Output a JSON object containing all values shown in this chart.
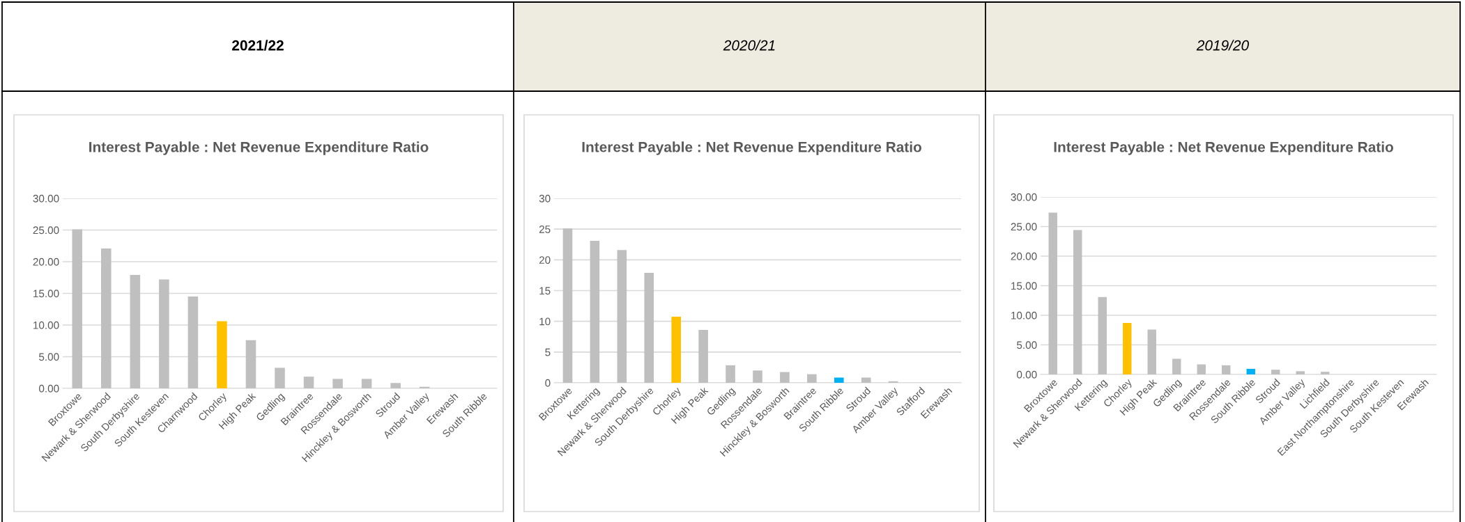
{
  "chart_data": [
    {
      "type": "bar",
      "title": "2021/22",
      "subtitle": "Interest Payable : Net Revenue Expenditure Ratio",
      "categories": [
        "Broxtowe",
        "Newark & Sherwood",
        "South Derbyshire",
        "South Kesteven",
        "Charnwood",
        "Chorley",
        "High Peak",
        "Gedling",
        "Braintree",
        "Rossendale",
        "Hinckley & Bosworth",
        "Stroud",
        "Amber Valley",
        "Erewash",
        "South Ribble"
      ],
      "values": [
        25.1,
        22.1,
        17.9,
        17.2,
        14.5,
        10.6,
        7.6,
        3.25,
        1.85,
        1.5,
        1.5,
        0.85,
        0.25,
        0,
        0
      ],
      "colors": [
        "#bfbfbf",
        "#bfbfbf",
        "#bfbfbf",
        "#bfbfbf",
        "#bfbfbf",
        "#ffc000",
        "#bfbfbf",
        "#bfbfbf",
        "#bfbfbf",
        "#bfbfbf",
        "#bfbfbf",
        "#bfbfbf",
        "#bfbfbf",
        "#bfbfbf",
        "#bfbfbf"
      ],
      "ylim": [
        0,
        30
      ],
      "yticks": [
        {
          "value": 0,
          "label": "0.00"
        },
        {
          "value": 5,
          "label": "5.00"
        },
        {
          "value": 10,
          "label": "10.00"
        },
        {
          "value": 15,
          "label": "15.00"
        },
        {
          "value": 20,
          "label": "20.00"
        },
        {
          "value": 25,
          "label": "25.00"
        },
        {
          "value": 30,
          "label": "30.00"
        }
      ],
      "grid": "y"
    },
    {
      "type": "bar",
      "title": "2020/21",
      "subtitle": "Interest Payable : Net Revenue Expenditure Ratio",
      "categories": [
        "Broxtowe",
        "Kettering",
        "Newark & Sherwood",
        "South Derbyshire",
        "Chorley",
        "High Peak",
        "Gedling",
        "Rossendale",
        "Hinckley & Bosworth",
        "Braintree",
        "South Ribble",
        "Stroud",
        "Amber Valley",
        "Stafford",
        "Erewash"
      ],
      "values": [
        25.1,
        23.1,
        21.6,
        17.9,
        10.75,
        8.6,
        2.85,
        2.0,
        1.75,
        1.4,
        0.85,
        0.85,
        0.25,
        0,
        0
      ],
      "colors": [
        "#bfbfbf",
        "#bfbfbf",
        "#bfbfbf",
        "#bfbfbf",
        "#ffc000",
        "#bfbfbf",
        "#bfbfbf",
        "#bfbfbf",
        "#bfbfbf",
        "#bfbfbf",
        "#00b0f0",
        "#bfbfbf",
        "#bfbfbf",
        "#bfbfbf",
        "#bfbfbf"
      ],
      "ylim": [
        0,
        30
      ],
      "yticks": [
        0,
        5,
        10,
        15,
        20,
        25,
        30
      ],
      "grid": "y"
    },
    {
      "type": "bar",
      "title": "2019/20",
      "subtitle": "Interest Payable : Net Revenue Expenditure Ratio",
      "categories": [
        "Broxtowe",
        "Newark & Sherwood",
        "Kettering",
        "Chorley",
        "High Peak",
        "Gedling",
        "Braintree",
        "Rossendale",
        "South Ribble",
        "Stroud",
        "Amber Valley",
        "Lichfield",
        "East Northamptonshire",
        "South Derbyshire",
        "South Kesteven",
        "Erewash"
      ],
      "values": [
        27.35,
        24.4,
        13.1,
        8.7,
        7.6,
        2.65,
        1.7,
        1.55,
        0.95,
        0.8,
        0.55,
        0.45,
        0,
        0,
        0,
        0
      ],
      "colors": [
        "#bfbfbf",
        "#bfbfbf",
        "#bfbfbf",
        "#ffc000",
        "#bfbfbf",
        "#bfbfbf",
        "#bfbfbf",
        "#bfbfbf",
        "#00b0f0",
        "#bfbfbf",
        "#bfbfbf",
        "#bfbfbf",
        "#bfbfbf",
        "#bfbfbf",
        "#bfbfbf",
        "#bfbfbf"
      ],
      "ylim": [
        0,
        30
      ],
      "yticks": [
        {
          "value": 0,
          "label": "0.00"
        },
        {
          "value": 5,
          "label": "5.00"
        },
        {
          "value": 10,
          "label": "10.00"
        },
        {
          "value": 15,
          "label": "15.00"
        },
        {
          "value": 20,
          "label": "20.00"
        },
        {
          "value": 25,
          "label": "25.00"
        },
        {
          "value": 30,
          "label": "30.00"
        }
      ],
      "grid": "y"
    }
  ]
}
